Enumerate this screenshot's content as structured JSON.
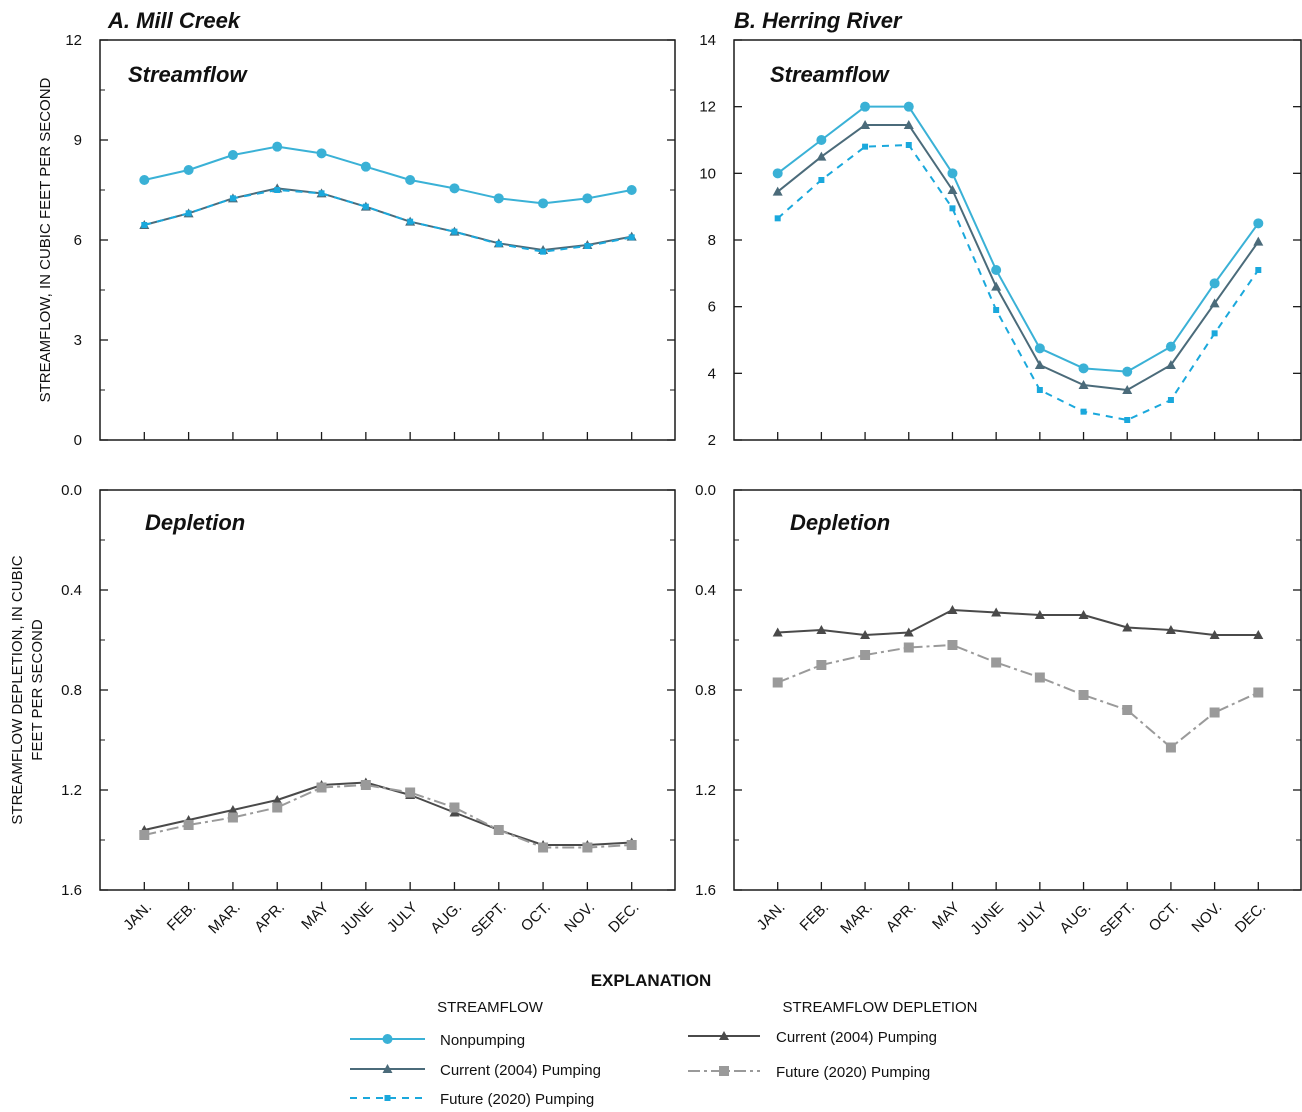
{
  "colors": {
    "nonpumping": "#3ab1d6",
    "current_streamflow": "#4b6b7a",
    "future_streamflow": "#1aa8dc",
    "current_depletion": "#4a4a4a",
    "future_depletion": "#9a9a9a"
  },
  "months": [
    "JAN.",
    "FEB.",
    "MAR.",
    "APR.",
    "MAY",
    "JUNE",
    "JULY",
    "AUG.",
    "SEPT.",
    "OCT.",
    "NOV.",
    "DEC."
  ],
  "axis_titles": {
    "streamflow": "STREAMFLOW, IN CUBIC FEET PER SECOND",
    "depletion_line1": "STREAMFLOW DEPLETION, IN CUBIC",
    "depletion_line2": "FEET PER SECOND"
  },
  "legend": {
    "title": "EXPLANATION",
    "streamflow_head": "STREAMFLOW",
    "depletion_head": "STREAMFLOW DEPLETION",
    "nonpumping": "Nonpumping",
    "current": "Current (2004) Pumping",
    "future": "Future (2020) Pumping",
    "dep_current": "Current (2004) Pumping",
    "dep_future": "Future (2020) Pumping"
  },
  "chart_data": [
    {
      "id": "mill-streamflow",
      "type": "line",
      "title": "A. Mill Creek",
      "inner_title": "Streamflow",
      "categories": [
        "JAN.",
        "FEB.",
        "MAR.",
        "APR.",
        "MAY",
        "JUNE",
        "JULY",
        "AUG.",
        "SEPT.",
        "OCT.",
        "NOV.",
        "DEC."
      ],
      "ylim": [
        0,
        12
      ],
      "yticks": [
        0,
        3,
        6,
        9,
        12
      ],
      "yminor": [
        1.5,
        4.5,
        7.5,
        10.5
      ],
      "inverted": false,
      "series": [
        {
          "name": "Nonpumping",
          "style": "nonpumping",
          "values": [
            7.8,
            8.1,
            8.55,
            8.8,
            8.6,
            8.2,
            7.8,
            7.55,
            7.25,
            7.1,
            7.25,
            7.5
          ]
        },
        {
          "name": "Current (2004) Pumping",
          "style": "current",
          "values": [
            6.45,
            6.8,
            7.25,
            7.55,
            7.4,
            7.0,
            6.55,
            6.25,
            5.9,
            5.7,
            5.85,
            6.1
          ]
        },
        {
          "name": "Future (2020) Pumping",
          "style": "future",
          "values": [
            6.45,
            6.8,
            7.25,
            7.5,
            7.4,
            7.0,
            6.55,
            6.25,
            5.88,
            5.65,
            5.82,
            6.08
          ]
        }
      ]
    },
    {
      "id": "herring-streamflow",
      "type": "line",
      "title": "B. Herring River",
      "inner_title": "Streamflow",
      "categories": [
        "JAN.",
        "FEB.",
        "MAR.",
        "APR.",
        "MAY",
        "JUNE",
        "JULY",
        "AUG.",
        "SEPT.",
        "OCT.",
        "NOV.",
        "DEC."
      ],
      "ylim": [
        2,
        14
      ],
      "yticks": [
        2,
        4,
        6,
        8,
        10,
        12,
        14
      ],
      "yminor": [],
      "inverted": false,
      "series": [
        {
          "name": "Nonpumping",
          "style": "nonpumping",
          "values": [
            10.0,
            11.0,
            12.0,
            12.0,
            10.0,
            7.1,
            4.75,
            4.15,
            4.05,
            4.8,
            6.7,
            8.5
          ]
        },
        {
          "name": "Current (2004) Pumping",
          "style": "current",
          "values": [
            9.45,
            10.5,
            11.45,
            11.45,
            9.5,
            6.6,
            4.25,
            3.65,
            3.5,
            4.25,
            6.1,
            7.95
          ]
        },
        {
          "name": "Future (2020) Pumping",
          "style": "future",
          "values": [
            8.65,
            9.8,
            10.8,
            10.85,
            8.95,
            5.9,
            3.5,
            2.85,
            2.6,
            3.2,
            5.2,
            7.1
          ]
        }
      ]
    },
    {
      "id": "mill-depletion",
      "type": "line",
      "inner_title": "Depletion",
      "categories": [
        "JAN.",
        "FEB.",
        "MAR.",
        "APR.",
        "MAY",
        "JUNE",
        "JULY",
        "AUG.",
        "SEPT.",
        "OCT.",
        "NOV.",
        "DEC."
      ],
      "ylim": [
        0.0,
        1.6
      ],
      "yticks": [
        0.0,
        0.4,
        0.8,
        1.2,
        1.6
      ],
      "yminor": [
        0.2,
        0.6,
        1.0,
        1.4
      ],
      "inverted": true,
      "series": [
        {
          "name": "Current (2004) Pumping",
          "style": "dep_current",
          "values": [
            1.36,
            1.32,
            1.28,
            1.24,
            1.18,
            1.17,
            1.22,
            1.29,
            1.36,
            1.42,
            1.42,
            1.41
          ]
        },
        {
          "name": "Future (2020) Pumping",
          "style": "dep_future",
          "values": [
            1.38,
            1.34,
            1.31,
            1.27,
            1.19,
            1.18,
            1.21,
            1.27,
            1.36,
            1.43,
            1.43,
            1.42
          ]
        }
      ]
    },
    {
      "id": "herring-depletion",
      "type": "line",
      "inner_title": "Depletion",
      "categories": [
        "JAN.",
        "FEB.",
        "MAR.",
        "APR.",
        "MAY",
        "JUNE",
        "JULY",
        "AUG.",
        "SEPT.",
        "OCT.",
        "NOV.",
        "DEC."
      ],
      "ylim": [
        0.0,
        1.6
      ],
      "yticks": [
        0.0,
        0.4,
        0.8,
        1.2,
        1.6
      ],
      "yminor": [
        0.2,
        0.6,
        1.0,
        1.4
      ],
      "inverted": true,
      "series": [
        {
          "name": "Current (2004) Pumping",
          "style": "dep_current",
          "values": [
            0.57,
            0.56,
            0.58,
            0.57,
            0.48,
            0.49,
            0.5,
            0.5,
            0.55,
            0.56,
            0.58,
            0.58
          ]
        },
        {
          "name": "Future (2020) Pumping",
          "style": "dep_future",
          "values": [
            0.77,
            0.7,
            0.66,
            0.63,
            0.62,
            0.69,
            0.75,
            0.82,
            0.88,
            1.03,
            0.89,
            0.81
          ]
        }
      ]
    }
  ]
}
